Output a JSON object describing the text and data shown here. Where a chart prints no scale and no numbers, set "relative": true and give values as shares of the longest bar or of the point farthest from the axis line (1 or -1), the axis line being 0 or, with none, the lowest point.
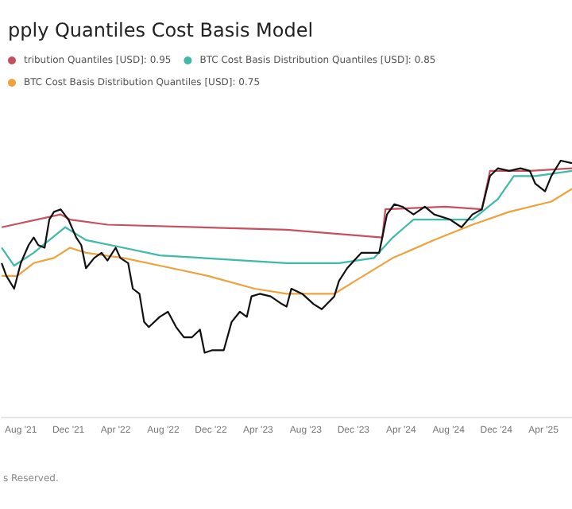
{
  "chart_data": {
    "type": "line",
    "title": "pply Quantiles Cost Basis Model",
    "relative": true,
    "legend": "top",
    "annotations": [
      "s Reserved."
    ],
    "xlim": [
      "2021-06-13",
      "2025-06-13"
    ],
    "xticks": [
      {
        "value": "2021-08-01",
        "label": "Aug '21"
      },
      {
        "value": "2021-12-01",
        "label": "Dec '21"
      },
      {
        "value": "2022-04-01",
        "label": "Apr '22"
      },
      {
        "value": "2022-08-01",
        "label": "Aug '22"
      },
      {
        "value": "2022-12-01",
        "label": "Dec '22"
      },
      {
        "value": "2023-04-01",
        "label": "Apr '23"
      },
      {
        "value": "2023-08-01",
        "label": "Aug '23"
      },
      {
        "value": "2023-12-01",
        "label": "Dec '23"
      },
      {
        "value": "2024-04-01",
        "label": "Apr '24"
      },
      {
        "value": "2024-08-01",
        "label": "Aug '24"
      },
      {
        "value": "2024-12-01",
        "label": "Dec '24"
      },
      {
        "value": "2025-04-01",
        "label": "Apr '25"
      }
    ],
    "series": [
      {
        "name": "tribution Quantiles [USD]: 0.95",
        "color": "#c8505e",
        "x": [
          "2021-06-13",
          "2021-11-11",
          "2021-12-05",
          "2022-03-11",
          "2023-06-13",
          "2024-02-13",
          "2024-02-21",
          "2024-07-23",
          "2024-10-25",
          "2024-11-15",
          "2025-02-25",
          "2025-06-13"
        ],
        "values": [
          0.74,
          0.79,
          0.77,
          0.75,
          0.73,
          0.7,
          0.81,
          0.82,
          0.81,
          0.96,
          0.96,
          0.97
        ]
      },
      {
        "name": "BTC Cost Basis Distribution Quantiles [USD]: 0.85",
        "color": "#3dbaa8",
        "x": [
          "2021-06-13",
          "2021-07-15",
          "2021-09-03",
          "2021-10-13",
          "2021-11-23",
          "2022-01-15",
          "2022-04-21",
          "2022-07-23",
          "2023-06-13",
          "2023-10-25",
          "2024-01-23",
          "2024-03-11",
          "2024-05-03",
          "2024-07-23",
          "2024-10-01",
          "2024-12-05",
          "2025-01-15",
          "2025-03-11",
          "2025-06-13"
        ],
        "values": [
          0.66,
          0.59,
          0.64,
          0.69,
          0.74,
          0.69,
          0.66,
          0.63,
          0.6,
          0.6,
          0.62,
          0.7,
          0.77,
          0.77,
          0.77,
          0.85,
          0.94,
          0.94,
          0.96
        ]
      },
      {
        "name": "BTC Cost Basis Distribution Quantiles [USD]: 0.75",
        "color": "#f0a23a",
        "x": [
          "2021-06-13",
          "2021-07-23",
          "2021-09-03",
          "2021-10-25",
          "2021-12-05",
          "2022-01-15",
          "2022-04-21",
          "2022-07-23",
          "2022-11-23",
          "2023-03-23",
          "2023-06-13",
          "2023-10-13",
          "2023-12-05",
          "2024-03-11",
          "2024-06-25",
          "2024-10-01",
          "2025-01-03",
          "2025-04-21",
          "2025-06-13"
        ],
        "values": [
          0.55,
          0.55,
          0.6,
          0.62,
          0.66,
          0.64,
          0.62,
          0.59,
          0.55,
          0.5,
          0.48,
          0.48,
          0.53,
          0.62,
          0.69,
          0.75,
          0.8,
          0.84,
          0.89
        ]
      },
      {
        "color": "#111111",
        "x": [
          "2021-06-13",
          "2021-06-25",
          "2021-07-15",
          "2021-08-01",
          "2021-08-21",
          "2021-09-03",
          "2021-09-15",
          "2021-10-01",
          "2021-10-13",
          "2021-10-25",
          "2021-11-11",
          "2021-12-01",
          "2021-12-21",
          "2022-01-03",
          "2022-01-15",
          "2022-02-05",
          "2022-02-24",
          "2022-03-11",
          "2022-04-01",
          "2022-04-13",
          "2022-05-03",
          "2022-05-15",
          "2022-06-01",
          "2022-06-13",
          "2022-06-25",
          "2022-07-23",
          "2022-08-13",
          "2022-09-03",
          "2022-09-23",
          "2022-10-13",
          "2022-11-03",
          "2022-11-15",
          "2022-12-05",
          "2023-01-03",
          "2023-01-23",
          "2023-02-13",
          "2023-03-03",
          "2023-03-15",
          "2023-04-05",
          "2023-05-03",
          "2023-06-01",
          "2023-06-13",
          "2023-06-25",
          "2023-07-23",
          "2023-08-21",
          "2023-09-11",
          "2023-10-13",
          "2023-10-25",
          "2023-11-15",
          "2023-12-21",
          "2024-01-15",
          "2024-02-05",
          "2024-02-25",
          "2024-03-15",
          "2024-04-05",
          "2024-05-03",
          "2024-06-01",
          "2024-06-25",
          "2024-08-05",
          "2024-09-03",
          "2024-10-01",
          "2024-10-25",
          "2024-11-15",
          "2024-12-05",
          "2025-01-03",
          "2025-02-01",
          "2025-02-25",
          "2025-03-11",
          "2025-04-05",
          "2025-04-21",
          "2025-05-15",
          "2025-06-13"
        ],
        "values": [
          0.6,
          0.55,
          0.5,
          0.6,
          0.67,
          0.7,
          0.67,
          0.66,
          0.77,
          0.8,
          0.81,
          0.77,
          0.7,
          0.67,
          0.58,
          0.62,
          0.64,
          0.61,
          0.66,
          0.62,
          0.6,
          0.5,
          0.48,
          0.37,
          0.35,
          0.39,
          0.41,
          0.35,
          0.31,
          0.31,
          0.34,
          0.25,
          0.26,
          0.26,
          0.37,
          0.41,
          0.39,
          0.47,
          0.48,
          0.47,
          0.44,
          0.43,
          0.5,
          0.48,
          0.44,
          0.42,
          0.47,
          0.53,
          0.58,
          0.64,
          0.64,
          0.64,
          0.79,
          0.83,
          0.82,
          0.79,
          0.82,
          0.79,
          0.77,
          0.74,
          0.79,
          0.81,
          0.94,
          0.97,
          0.96,
          0.97,
          0.96,
          0.91,
          0.88,
          0.94,
          1,
          0.99
        ]
      }
    ]
  }
}
